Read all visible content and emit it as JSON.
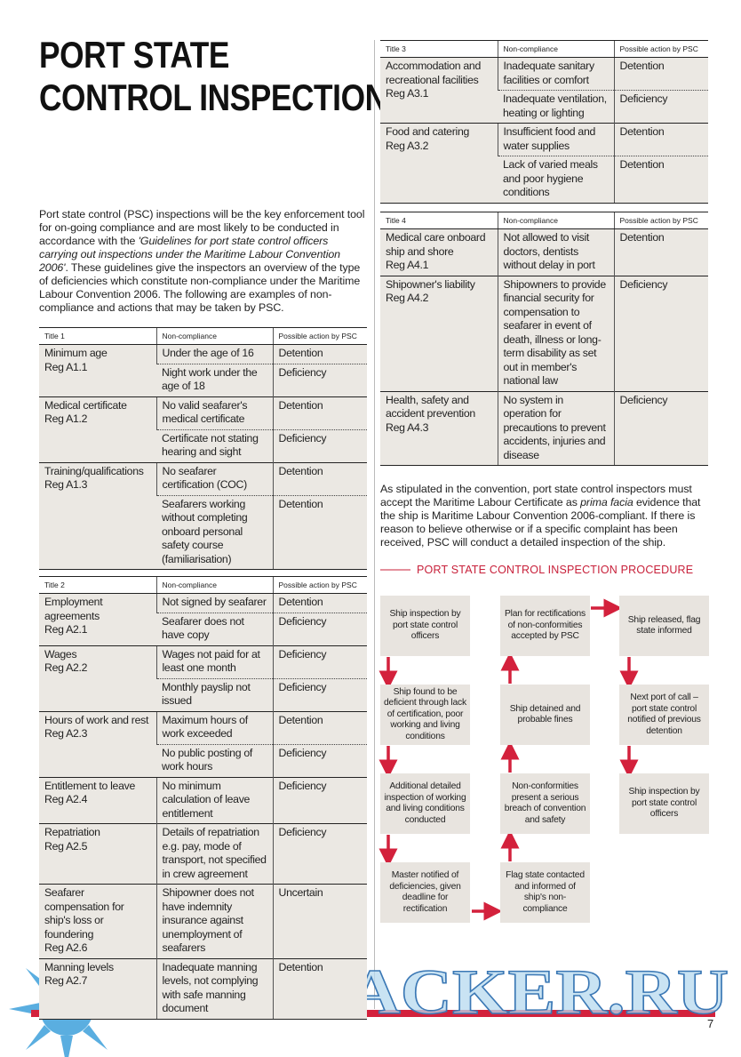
{
  "header": {
    "title_lines": [
      "PORT STATE",
      "CONTROL INSPECTION"
    ]
  },
  "intro": {
    "before": "Port state control (PSC) inspections will be the key enforcement tool for on-going compliance and are most likely to be conducted in accordance with the ",
    "emphasis": "'Guidelines for port state control officers carrying out inspections under the Maritime Labour Convention 2006'",
    "after": ". These guidelines give the inspectors an overview of the type of deficiencies which constitute non-compliance under the Maritime Labour Convention 2006. The following are examples of non-compliance and actions that may be taken by PSC."
  },
  "tables": [
    {
      "title": "Title 1",
      "headers": [
        "Non-compliance",
        "Possible action by PSC"
      ],
      "groups": [
        {
          "area": "Minimum age",
          "reg": "Reg A1.1",
          "rows": [
            [
              "Under the age of 16",
              "Detention"
            ],
            [
              "Night work under the age of 18",
              "Deficiency"
            ]
          ]
        },
        {
          "area": "Medical certificate",
          "reg": "Reg A1.2",
          "rows": [
            [
              "No valid seafarer's medical certificate",
              "Detention"
            ],
            [
              "Certificate not stating hearing and sight",
              "Deficiency"
            ]
          ]
        },
        {
          "area": "Training/qualifications",
          "reg": "Reg A1.3",
          "rows": [
            [
              "No seafarer certification (COC)",
              "Detention"
            ],
            [
              "Seafarers working without completing onboard personal safety course (familiarisation)",
              "Detention"
            ]
          ]
        }
      ]
    },
    {
      "title": "Title 2",
      "headers": [
        "Non-compliance",
        "Possible action by PSC"
      ],
      "groups": [
        {
          "area": "Employment agreements",
          "reg": "Reg A2.1",
          "rows": [
            [
              "Not signed by seafarer",
              "Detention"
            ],
            [
              "Seafarer does not have copy",
              "Deficiency"
            ]
          ]
        },
        {
          "area": "Wages",
          "reg": "Reg A2.2",
          "rows": [
            [
              "Wages not paid for at least one month",
              "Deficiency"
            ],
            [
              "Monthly payslip not issued",
              "Deficiency"
            ]
          ]
        },
        {
          "area": "Hours of work and rest",
          "reg": "Reg A2.3",
          "rows": [
            [
              "Maximum hours of work exceeded",
              "Detention"
            ],
            [
              "No public posting of work hours",
              "Deficiency"
            ]
          ]
        },
        {
          "area": "Entitlement to leave",
          "reg": "Reg A2.4",
          "rows": [
            [
              "No minimum calculation of leave entitlement",
              "Deficiency"
            ]
          ]
        },
        {
          "area": "Repatriation",
          "reg": "Reg A2.5",
          "rows": [
            [
              "Details of repatriation e.g. pay, mode of transport, not specified in crew agreement",
              "Deficiency"
            ]
          ]
        },
        {
          "area": "Seafarer compensation for ship's loss or foundering",
          "reg": "Reg A2.6",
          "rows": [
            [
              "Shipowner does not have indemnity insurance against unemployment of seafarers",
              "Uncertain"
            ]
          ]
        },
        {
          "area": "Manning levels",
          "reg": "Reg A2.7",
          "rows": [
            [
              "Inadequate manning levels, not complying with safe manning document",
              "Detention"
            ]
          ]
        }
      ]
    },
    {
      "title": "Title 3",
      "headers": [
        "Non-compliance",
        "Possible action by PSC"
      ],
      "groups": [
        {
          "area": "Accommodation and recreational facilities",
          "reg": "Reg A3.1",
          "rows": [
            [
              "Inadequate sanitary facilities or comfort",
              "Detention"
            ],
            [
              "Inadequate ventilation, heating or lighting",
              "Deficiency"
            ]
          ]
        },
        {
          "area": "Food and catering",
          "reg": "Reg A3.2",
          "rows": [
            [
              "Insufficient food and water supplies",
              "Detention"
            ],
            [
              "Lack of varied meals and poor hygiene conditions",
              "Detention"
            ]
          ]
        }
      ]
    },
    {
      "title": "Title 4",
      "headers": [
        "Non-compliance",
        "Possible action by PSC"
      ],
      "groups": [
        {
          "area": "Medical care onboard ship and shore",
          "reg": "Reg A4.1",
          "rows": [
            [
              "Not allowed to visit doctors, dentists without delay in port",
              "Detention"
            ]
          ]
        },
        {
          "area": "Shipowner's liability",
          "reg": "Reg A4.2",
          "rows": [
            [
              "Shipowners to provide financial security for compensation to seafarer in event of death, illness or long-term disability as set out in member's national law",
              "Deficiency"
            ]
          ]
        },
        {
          "area": "Health, safety and accident prevention",
          "reg": "Reg A4.3",
          "rows": [
            [
              "No system in operation for precautions to prevent accidents, injuries and disease",
              "Deficiency"
            ]
          ]
        }
      ]
    }
  ],
  "closing": {
    "before": "As stipulated in the convention, port state control inspectors must accept the Maritime Labour Certificate as ",
    "emphasis": "prima facia",
    "after": " evidence that the ship is Maritime Labour Convention 2006-compliant. If there is reason to believe otherwise or if a specific complaint has been received, PSC will conduct a detailed inspection of the ship."
  },
  "flow": {
    "title": "PORT STATE CONTROL INSPECTION PROCEDURE",
    "boxes": [
      "Ship inspection by port state control officers",
      "Ship found to be deficient through lack of certification, poor working and living conditions",
      "Additional detailed inspection of working and living conditions conducted",
      "Master notified of deficiencies, given deadline for rectification",
      "Flag state contacted and informed of ship's non-compliance",
      "Non-conformities present a serious breach of convention and safety",
      "Ship detained and probable fines",
      "Plan for rectifications of non-conformities accepted by PSC",
      "Ship released, flag state informed",
      "Next port of call – port state control notified of previous detention",
      "Ship inspection by port state control officers"
    ]
  },
  "watermark": "SEATRACKER.RU",
  "page_number": "7"
}
